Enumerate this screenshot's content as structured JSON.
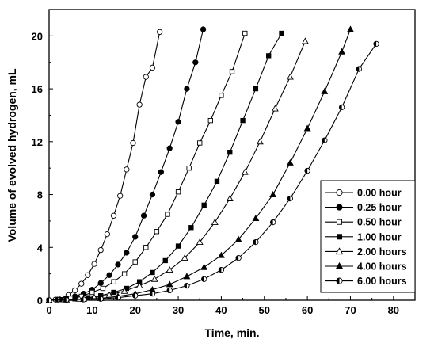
{
  "chart_data": {
    "type": "line",
    "title": "",
    "xlabel": "Time, min.",
    "ylabel": "Volume of evolved hydrogen, mL",
    "xlim": [
      0,
      85
    ],
    "ylim": [
      0,
      22
    ],
    "xticks": [
      0,
      10,
      20,
      30,
      40,
      50,
      60,
      70,
      80
    ],
    "yticks": [
      0,
      4,
      8,
      12,
      16,
      20
    ],
    "grid": false,
    "legend_position": "bottom-right",
    "series": [
      {
        "name": "0.00 hour",
        "marker": "circle-open",
        "x": [
          0,
          1.5,
          3,
          4.5,
          6,
          7.5,
          9,
          10.5,
          12,
          13.5,
          15,
          16.5,
          18,
          19.5,
          21,
          22.5,
          24,
          25.7
        ],
        "y": [
          0,
          0.05,
          0.15,
          0.4,
          0.75,
          1.25,
          1.9,
          2.75,
          3.8,
          5.0,
          6.4,
          7.9,
          9.9,
          11.9,
          14.8,
          16.9,
          17.6,
          20.3
        ]
      },
      {
        "name": "0.25 hour",
        "marker": "circle-filled",
        "x": [
          0,
          2,
          4,
          6,
          8,
          10,
          12,
          14,
          16,
          18,
          20,
          22,
          24,
          26,
          28,
          30,
          32,
          34,
          35.8
        ],
        "y": [
          0,
          0.05,
          0.15,
          0.3,
          0.5,
          0.8,
          1.3,
          1.9,
          2.7,
          3.6,
          4.8,
          6.4,
          8.0,
          9.7,
          11.5,
          13.5,
          16.0,
          18.0,
          20.5
        ]
      },
      {
        "name": "0.50 hour",
        "marker": "square-open",
        "x": [
          0,
          2.5,
          5,
          7.5,
          10,
          12.5,
          15,
          17.5,
          20,
          22.5,
          25,
          27.5,
          30,
          32.5,
          35,
          37.5,
          40,
          42.5,
          45.5
        ],
        "y": [
          0,
          0.05,
          0.15,
          0.3,
          0.6,
          0.9,
          1.4,
          2.0,
          2.9,
          4.0,
          5.2,
          6.5,
          8.2,
          10.0,
          11.9,
          13.6,
          15.5,
          17.3,
          20.2
        ]
      },
      {
        "name": "1.00 hour",
        "marker": "square-filled",
        "x": [
          0,
          3,
          6,
          9,
          12,
          15,
          18,
          21,
          24,
          27,
          30,
          33,
          36,
          39,
          42,
          45,
          48,
          51,
          54
        ],
        "y": [
          0,
          0.05,
          0.1,
          0.2,
          0.35,
          0.6,
          0.9,
          1.4,
          2.1,
          3.0,
          4.1,
          5.5,
          7.2,
          9.0,
          11.2,
          13.6,
          16.0,
          18.5,
          20.2
        ]
      },
      {
        "name": "2.00 hours",
        "marker": "triangle-open",
        "x": [
          0,
          3.5,
          7,
          10.5,
          14,
          17.5,
          21,
          24.5,
          28,
          31.5,
          35,
          38.5,
          42,
          45.5,
          49,
          52.5,
          56,
          59.5
        ],
        "y": [
          0,
          0.05,
          0.1,
          0.2,
          0.4,
          0.7,
          1.1,
          1.6,
          2.3,
          3.2,
          4.4,
          5.9,
          7.7,
          9.7,
          12.0,
          14.5,
          16.9,
          19.6
        ]
      },
      {
        "name": "4.00 hours",
        "marker": "triangle-filled",
        "x": [
          0,
          4,
          8,
          12,
          16,
          20,
          24,
          28,
          32,
          36,
          40,
          44,
          48,
          52,
          56,
          60,
          64,
          68,
          70
        ],
        "y": [
          0,
          0.04,
          0.08,
          0.15,
          0.3,
          0.5,
          0.8,
          1.2,
          1.8,
          2.5,
          3.4,
          4.6,
          6.2,
          8.0,
          10.4,
          13.0,
          15.8,
          18.8,
          20.5
        ]
      },
      {
        "name": "6.00 hours",
        "marker": "circle-half",
        "x": [
          0,
          4,
          8,
          12,
          16,
          20,
          24,
          28,
          32,
          36,
          40,
          44,
          48,
          52,
          56,
          60,
          64,
          68,
          72,
          76
        ],
        "y": [
          0,
          0.03,
          0.06,
          0.1,
          0.2,
          0.35,
          0.5,
          0.75,
          1.1,
          1.6,
          2.3,
          3.2,
          4.4,
          5.9,
          7.7,
          9.8,
          12.1,
          14.6,
          17.5,
          19.4
        ]
      }
    ]
  }
}
